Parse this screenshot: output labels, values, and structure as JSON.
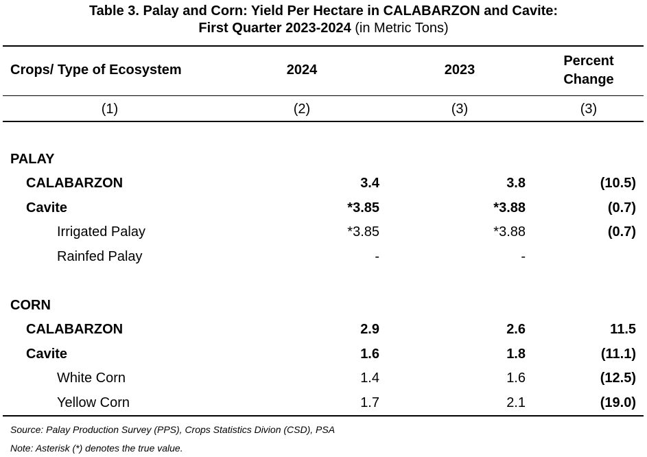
{
  "title": {
    "line1": "Table 3. Palay and Corn: Yield Per Hectare in CALABARZON and Cavite:",
    "line2_bold": "First Quarter 2023-2024",
    "line2_normal": " (in Metric Tons)"
  },
  "header": {
    "col1": "Crops/ Type of Ecosystem",
    "col2": "2024",
    "col3": "2023",
    "col4_line1": "Percent",
    "col4_line2": "Change"
  },
  "col_numbers": [
    "(1)",
    "(2)",
    "(3)",
    "(3)"
  ],
  "sections": [
    {
      "label": "PALAY",
      "rows": [
        {
          "name": "CALABARZON",
          "v2024": "3.4",
          "v2023": "3.8",
          "change": "(10.5)",
          "level": 1,
          "bold": true
        },
        {
          "name": "Cavite",
          "v2024": "*3.85",
          "v2023": "*3.88",
          "change": "(0.7)",
          "level": 1,
          "bold": true
        },
        {
          "name": "Irrigated Palay",
          "v2024": "*3.85",
          "v2023": "*3.88",
          "change": "(0.7)",
          "level": 2,
          "bold": false
        },
        {
          "name": "Rainfed Palay",
          "v2024": "-",
          "v2023": "-",
          "change": "",
          "level": 2,
          "bold": false
        }
      ]
    },
    {
      "label": "CORN",
      "rows": [
        {
          "name": "CALABARZON",
          "v2024": "2.9",
          "v2023": "2.6",
          "change": "11.5",
          "level": 1,
          "bold": true
        },
        {
          "name": "Cavite",
          "v2024": "1.6",
          "v2023": "1.8",
          "change": "(11.1)",
          "level": 1,
          "bold": true
        },
        {
          "name": "White Corn",
          "v2024": "1.4",
          "v2023": "1.6",
          "change": "(12.5)",
          "level": 2,
          "bold": false
        },
        {
          "name": "Yellow Corn",
          "v2024": "1.7",
          "v2023": "2.1",
          "change": "(19.0)",
          "level": 2,
          "bold": false
        }
      ]
    }
  ],
  "footnotes": {
    "source": "Source: Palay Production Survey (PPS), Crops Statistics Divion (CSD), PSA",
    "note": "Note: Asterisk (*) denotes the true value."
  }
}
